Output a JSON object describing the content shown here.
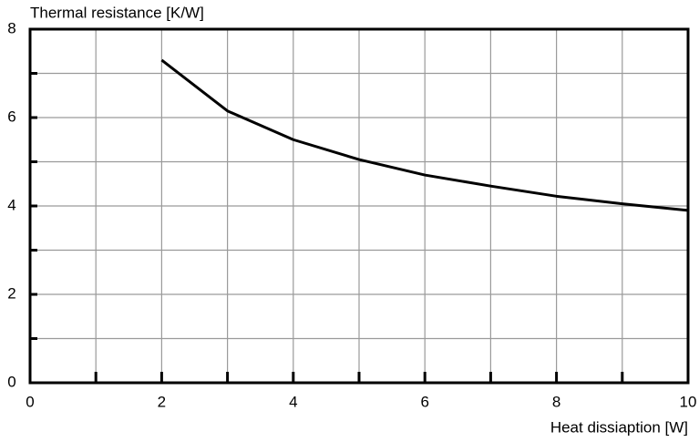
{
  "chart_data": {
    "type": "line",
    "xlabel": "Heat dissiaption [W]",
    "ylabel": "Thermal resistance [K/W]",
    "x": [
      2,
      3,
      4,
      5,
      6,
      7,
      8,
      9,
      10
    ],
    "series": [
      {
        "color": "#000000",
        "values": [
          7.3,
          6.15,
          5.5,
          5.05,
          4.7,
          4.45,
          4.22,
          4.05,
          3.9
        ]
      }
    ],
    "xlim": [
      0,
      10
    ],
    "ylim": [
      0,
      8
    ],
    "xticks": [
      0,
      2,
      4,
      6,
      8,
      10
    ],
    "yticks": [
      0,
      2,
      4,
      6,
      8
    ],
    "xminor": [
      1,
      3,
      5,
      7,
      9
    ],
    "yminor": [
      1,
      3,
      5,
      7
    ],
    "grid": true
  }
}
